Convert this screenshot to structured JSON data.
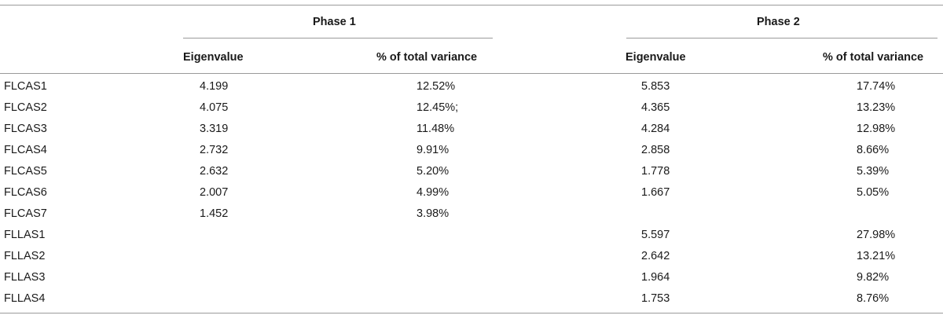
{
  "table": {
    "phase1_title": "Phase 1",
    "phase2_title": "Phase 2",
    "column_headers": [
      "Eigenvalue",
      "% of total variance",
      "Eigenvalue",
      "% of total variance"
    ],
    "rows": [
      {
        "label": "FLCAS1",
        "p1_eigen": "4.199",
        "p1_var": "12.52%",
        "p2_eigen": "5.853",
        "p2_var": "17.74%"
      },
      {
        "label": "FLCAS2",
        "p1_eigen": "4.075",
        "p1_var": "12.45%;",
        "p2_eigen": "4.365",
        "p2_var": "13.23%"
      },
      {
        "label": "FLCAS3",
        "p1_eigen": "3.319",
        "p1_var": "11.48%",
        "p2_eigen": "4.284",
        "p2_var": "12.98%"
      },
      {
        "label": "FLCAS4",
        "p1_eigen": "2.732",
        "p1_var": "9.91%",
        "p2_eigen": "2.858",
        "p2_var": "8.66%"
      },
      {
        "label": "FLCAS5",
        "p1_eigen": "2.632",
        "p1_var": "5.20%",
        "p2_eigen": "1.778",
        "p2_var": "5.39%"
      },
      {
        "label": "FLCAS6",
        "p1_eigen": "2.007",
        "p1_var": "4.99%",
        "p2_eigen": "1.667",
        "p2_var": "5.05%"
      },
      {
        "label": "FLCAS7",
        "p1_eigen": "1.452",
        "p1_var": "3.98%",
        "p2_eigen": "",
        "p2_var": ""
      },
      {
        "label": "FLLAS1",
        "p1_eigen": "",
        "p1_var": "",
        "p2_eigen": "5.597",
        "p2_var": "27.98%"
      },
      {
        "label": "FLLAS2",
        "p1_eigen": "",
        "p1_var": "",
        "p2_eigen": "2.642",
        "p2_var": "13.21%"
      },
      {
        "label": "FLLAS3",
        "p1_eigen": "",
        "p1_var": "",
        "p2_eigen": "1.964",
        "p2_var": "9.82%"
      },
      {
        "label": "FLLAS4",
        "p1_eigen": "",
        "p1_var": "",
        "p2_eigen": "1.753",
        "p2_var": "8.76%"
      }
    ]
  }
}
